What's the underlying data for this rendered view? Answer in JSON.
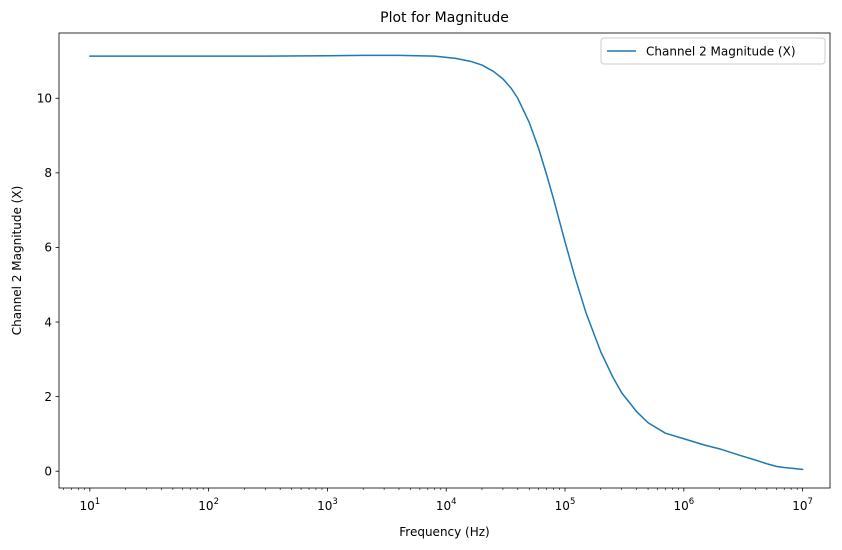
{
  "chart_data": {
    "type": "line",
    "title": "Plot for Magnitude",
    "xlabel": "Frequency (Hz)",
    "ylabel": "Channel 2 Magnitude (X)",
    "xscale": "log",
    "xlim": [
      5.5,
      17000000
    ],
    "ylim": [
      -0.45,
      11.75
    ],
    "grid": false,
    "legend_position": "top-right",
    "xticks": [
      {
        "value": 10,
        "base": "10",
        "exp": "1"
      },
      {
        "value": 100,
        "base": "10",
        "exp": "2"
      },
      {
        "value": 1000,
        "base": "10",
        "exp": "3"
      },
      {
        "value": 10000,
        "base": "10",
        "exp": "4"
      },
      {
        "value": 100000,
        "base": "10",
        "exp": "5"
      },
      {
        "value": 1000000,
        "base": "10",
        "exp": "6"
      },
      {
        "value": 10000000,
        "base": "10",
        "exp": "7"
      }
    ],
    "yticks": [
      {
        "value": 0,
        "label": "0"
      },
      {
        "value": 2,
        "label": "2"
      },
      {
        "value": 4,
        "label": "4"
      },
      {
        "value": 6,
        "label": "6"
      },
      {
        "value": 8,
        "label": "8"
      },
      {
        "value": 10,
        "label": "10"
      }
    ],
    "series": [
      {
        "name": "Channel 2 Magnitude (X)",
        "color": "#1f77b4",
        "x": [
          10,
          30,
          100,
          300,
          1000,
          2000,
          4000,
          8000,
          12000,
          16000,
          20000,
          25000,
          30000,
          35000,
          40000,
          50000,
          60000,
          70000,
          80000,
          100000,
          120000,
          150000,
          200000,
          250000,
          300000,
          400000,
          500000,
          700000,
          1000000,
          1500000,
          2000000,
          3000000,
          4000000,
          5000000,
          6000000,
          7000000,
          10000000
        ],
        "y": [
          11.13,
          11.13,
          11.13,
          11.13,
          11.14,
          11.15,
          11.15,
          11.13,
          11.07,
          10.99,
          10.89,
          10.72,
          10.52,
          10.28,
          10.0,
          9.35,
          8.65,
          7.95,
          7.3,
          6.15,
          5.25,
          4.25,
          3.2,
          2.55,
          2.1,
          1.6,
          1.3,
          1.02,
          0.87,
          0.7,
          0.6,
          0.42,
          0.3,
          0.2,
          0.13,
          0.1,
          0.05
        ]
      }
    ]
  }
}
